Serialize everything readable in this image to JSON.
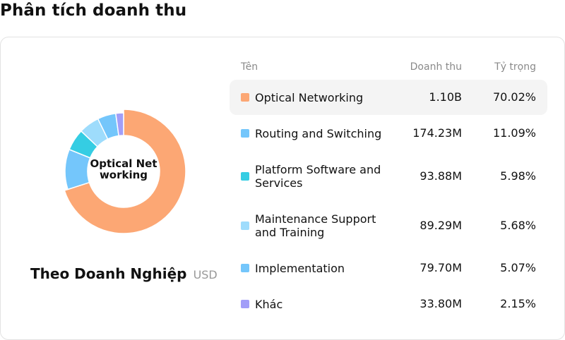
{
  "page": {
    "title": "Phân tích doanh thu"
  },
  "donut": {
    "center_label": "Optical Networking"
  },
  "subtitle": {
    "main": "Theo Doanh Nghiệp",
    "unit": "USD"
  },
  "table": {
    "headers": {
      "name": "Tên",
      "revenue": "Doanh thu",
      "share": "Tỷ trọng"
    },
    "rows": [
      {
        "name": "Optical Networking",
        "revenue": "1.10B",
        "share": "70.02%",
        "color": "#fca774"
      },
      {
        "name": "Routing and Switching",
        "revenue": "174.23M",
        "share": "11.09%",
        "color": "#74c6fb"
      },
      {
        "name": "Platform Software and Services",
        "revenue": "93.88M",
        "share": "5.98%",
        "color": "#35cde3"
      },
      {
        "name": "Maintenance Support and Training",
        "revenue": "89.29M",
        "share": "5.68%",
        "color": "#9edcfc"
      },
      {
        "name": "Implementation",
        "revenue": "79.70M",
        "share": "5.07%",
        "color": "#74c6fb"
      },
      {
        "name": "Khác",
        "revenue": "33.80M",
        "share": "2.15%",
        "color": "#a29ef8"
      }
    ]
  },
  "chart_data": {
    "type": "pie",
    "title": "",
    "categories": [
      "Optical Networking",
      "Routing and Switching",
      "Platform Software and Services",
      "Maintenance Support and Training",
      "Implementation",
      "Khác"
    ],
    "values": [
      70.02,
      11.09,
      5.98,
      5.68,
      5.07,
      2.15
    ],
    "colors": [
      "#fca774",
      "#74c6fb",
      "#35cde3",
      "#9edcfc",
      "#74c6fb",
      "#a29ef8"
    ],
    "highlighted": "Optical Networking"
  }
}
